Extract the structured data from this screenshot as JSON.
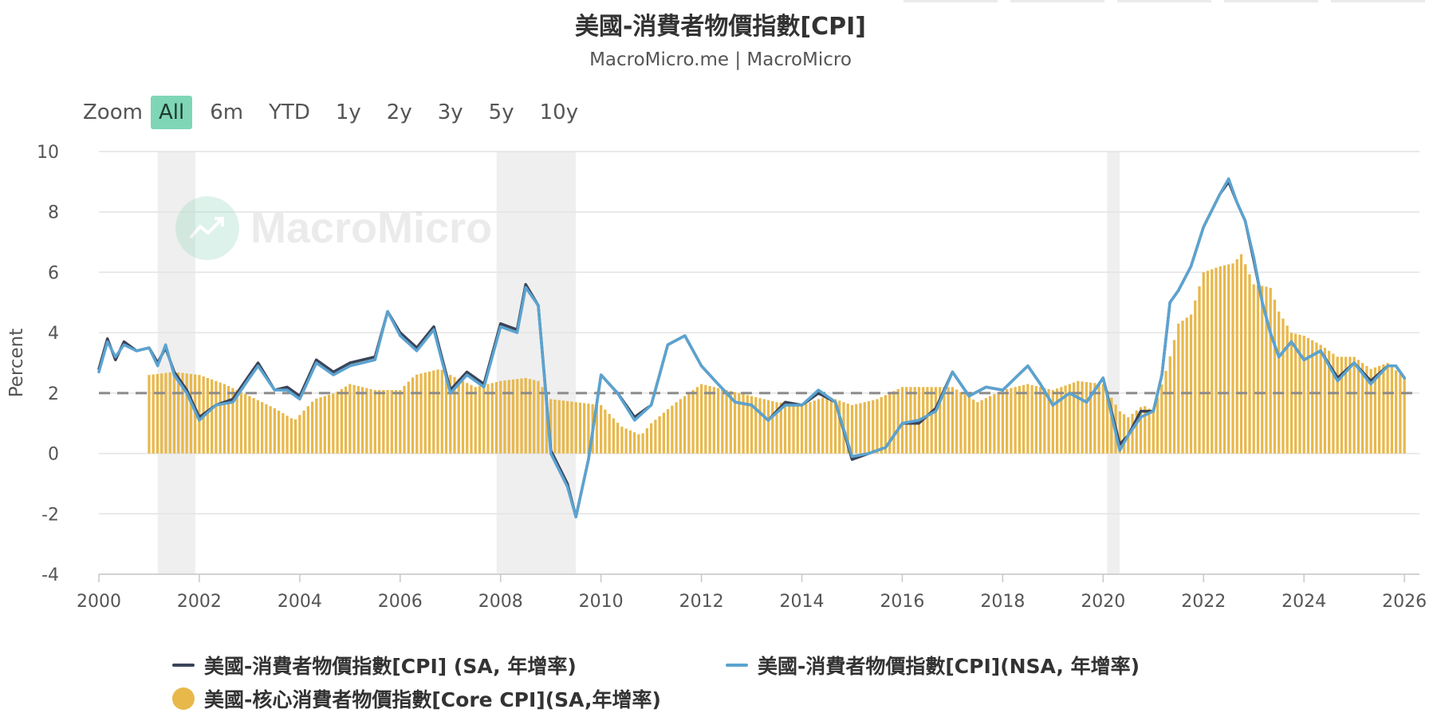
{
  "title": "美國-消費者物價指數[CPI]",
  "subtitle": "MacroMicro.me | MacroMicro",
  "watermark": "MacroMicro",
  "zoom": {
    "label": "Zoom",
    "options": [
      "All",
      "6m",
      "YTD",
      "1y",
      "2y",
      "3y",
      "5y",
      "10y"
    ],
    "active": "All"
  },
  "colors": {
    "cpi_sa": "#3b4458",
    "cpi_nsa": "#5ba3d0",
    "core": "#e8b84b",
    "shade": "#efefef",
    "ref": "#8a8a8a"
  },
  "chart_data": {
    "type": "line",
    "ylabel": "Percent",
    "xlim": [
      2000,
      2026.3
    ],
    "ylim": [
      -4,
      10
    ],
    "yticks": [
      -4,
      -2,
      0,
      2,
      4,
      6,
      8,
      10
    ],
    "xticks": [
      2000,
      2002,
      2004,
      2006,
      2008,
      2010,
      2012,
      2014,
      2016,
      2018,
      2020,
      2022,
      2024,
      2026
    ],
    "reference_line": 2,
    "grid": true,
    "legend_position": "bottom",
    "recessions": [
      [
        2001.17,
        2001.92
      ],
      [
        2007.92,
        2009.5
      ],
      [
        2020.08,
        2020.33
      ]
    ],
    "series": [
      {
        "name": "美國-消費者物價指數[CPI] (SA, 年增率)",
        "kind": "line",
        "x": [
          2000.0,
          2000.17,
          2000.33,
          2000.5,
          2000.75,
          2001.0,
          2001.17,
          2001.33,
          2001.5,
          2001.75,
          2002.0,
          2002.33,
          2002.67,
          2003.0,
          2003.17,
          2003.5,
          2003.75,
          2004.0,
          2004.33,
          2004.67,
          2005.0,
          2005.5,
          2005.75,
          2006.0,
          2006.33,
          2006.67,
          2007.0,
          2007.33,
          2007.67,
          2008.0,
          2008.33,
          2008.5,
          2008.75,
          2009.0,
          2009.33,
          2009.5,
          2009.75,
          2010.0,
          2010.33,
          2010.67,
          2011.0,
          2011.33,
          2011.67,
          2012.0,
          2012.33,
          2012.67,
          2013.0,
          2013.33,
          2013.67,
          2014.0,
          2014.33,
          2014.67,
          2015.0,
          2015.33,
          2015.67,
          2016.0,
          2016.33,
          2016.67,
          2017.0,
          2017.33,
          2017.67,
          2018.0,
          2018.5,
          2018.75,
          2019.0,
          2019.33,
          2019.67,
          2020.0,
          2020.33,
          2020.5,
          2020.75,
          2021.0,
          2021.17,
          2021.33,
          2021.5,
          2021.75,
          2022.0,
          2022.33,
          2022.5,
          2022.67,
          2022.83,
          2023.0,
          2023.17,
          2023.33,
          2023.5,
          2023.75,
          2024.0,
          2024.33,
          2024.67,
          2025.0,
          2025.33,
          2025.67,
          2025.83,
          2026.0
        ],
        "values": [
          2.8,
          3.8,
          3.1,
          3.7,
          3.4,
          3.5,
          3.0,
          3.5,
          2.7,
          2.1,
          1.2,
          1.6,
          1.8,
          2.6,
          3.0,
          2.1,
          2.2,
          1.9,
          3.1,
          2.7,
          3.0,
          3.2,
          4.7,
          4.0,
          3.5,
          4.2,
          2.1,
          2.7,
          2.3,
          4.3,
          4.1,
          5.6,
          4.9,
          0.1,
          -1.0,
          -2.1,
          -0.2,
          2.6,
          2.0,
          1.2,
          1.6,
          3.6,
          3.9,
          2.9,
          2.3,
          1.7,
          1.6,
          1.1,
          1.7,
          1.6,
          2.0,
          1.7,
          -0.2,
          0.0,
          0.2,
          1.0,
          1.0,
          1.5,
          2.7,
          1.9,
          2.2,
          2.1,
          2.9,
          2.3,
          1.6,
          2.0,
          1.7,
          2.5,
          0.3,
          0.6,
          1.4,
          1.4,
          2.6,
          5.0,
          5.4,
          6.2,
          7.5,
          8.6,
          9.0,
          8.3,
          7.7,
          6.4,
          5.0,
          4.0,
          3.2,
          3.7,
          3.1,
          3.4,
          2.5,
          3.0,
          2.4,
          2.9,
          2.9,
          2.5
        ]
      },
      {
        "name": "美國-消費者物價指數[CPI](NSA, 年增率)",
        "kind": "line",
        "x": [
          2000.0,
          2000.17,
          2000.33,
          2000.5,
          2000.75,
          2001.0,
          2001.17,
          2001.33,
          2001.5,
          2001.75,
          2002.0,
          2002.33,
          2002.67,
          2003.0,
          2003.17,
          2003.5,
          2003.75,
          2004.0,
          2004.33,
          2004.67,
          2005.0,
          2005.5,
          2005.75,
          2006.0,
          2006.33,
          2006.67,
          2007.0,
          2007.33,
          2007.67,
          2008.0,
          2008.33,
          2008.5,
          2008.75,
          2009.0,
          2009.33,
          2009.5,
          2009.75,
          2010.0,
          2010.33,
          2010.67,
          2011.0,
          2011.33,
          2011.67,
          2012.0,
          2012.33,
          2012.67,
          2013.0,
          2013.33,
          2013.67,
          2014.0,
          2014.33,
          2014.67,
          2015.0,
          2015.33,
          2015.67,
          2016.0,
          2016.33,
          2016.67,
          2017.0,
          2017.33,
          2017.67,
          2018.0,
          2018.5,
          2018.75,
          2019.0,
          2019.33,
          2019.67,
          2020.0,
          2020.33,
          2020.5,
          2020.75,
          2021.0,
          2021.17,
          2021.33,
          2021.5,
          2021.75,
          2022.0,
          2022.33,
          2022.5,
          2022.67,
          2022.83,
          2023.0,
          2023.17,
          2023.33,
          2023.5,
          2023.75,
          2024.0,
          2024.33,
          2024.67,
          2025.0,
          2025.33,
          2025.67,
          2025.83,
          2026.0
        ],
        "values": [
          2.7,
          3.7,
          3.2,
          3.6,
          3.4,
          3.5,
          2.9,
          3.6,
          2.6,
          2.0,
          1.1,
          1.6,
          1.7,
          2.5,
          2.9,
          2.1,
          2.1,
          1.8,
          3.0,
          2.6,
          2.9,
          3.1,
          4.7,
          3.9,
          3.4,
          4.1,
          2.0,
          2.6,
          2.2,
          4.2,
          4.0,
          5.5,
          4.9,
          0.0,
          -1.1,
          -2.1,
          -0.2,
          2.6,
          2.0,
          1.1,
          1.6,
          3.6,
          3.9,
          2.9,
          2.3,
          1.7,
          1.6,
          1.1,
          1.6,
          1.6,
          2.1,
          1.7,
          -0.1,
          0.0,
          0.2,
          1.0,
          1.1,
          1.4,
          2.7,
          1.9,
          2.2,
          2.1,
          2.9,
          2.3,
          1.6,
          2.0,
          1.7,
          2.5,
          0.1,
          0.6,
          1.2,
          1.4,
          2.6,
          5.0,
          5.4,
          6.2,
          7.5,
          8.6,
          9.1,
          8.3,
          7.7,
          6.5,
          5.0,
          4.0,
          3.2,
          3.7,
          3.1,
          3.4,
          2.4,
          3.0,
          2.3,
          2.9,
          2.9,
          2.5
        ]
      },
      {
        "name": "美國-核心消費者物價指數[Core CPI](SA,年增率)",
        "kind": "bar",
        "x": [
          2001.0,
          2001.5,
          2002.0,
          2002.5,
          2003.0,
          2003.5,
          2003.9,
          2004.3,
          2004.7,
          2005.0,
          2005.5,
          2006.0,
          2006.3,
          2006.8,
          2007.0,
          2007.5,
          2008.0,
          2008.5,
          2008.75,
          2009.0,
          2009.5,
          2010.0,
          2010.4,
          2010.8,
          2011.0,
          2011.5,
          2011.75,
          2012.0,
          2012.5,
          2013.0,
          2013.5,
          2014.0,
          2014.5,
          2015.0,
          2015.5,
          2016.0,
          2016.5,
          2017.0,
          2017.5,
          2018.0,
          2018.5,
          2019.0,
          2019.5,
          2020.0,
          2020.33,
          2020.5,
          2020.8,
          2021.0,
          2021.3,
          2021.5,
          2021.75,
          2022.0,
          2022.33,
          2022.6,
          2022.75,
          2023.0,
          2023.33,
          2023.5,
          2023.75,
          2024.0,
          2024.33,
          2024.67,
          2025.0,
          2025.33,
          2025.67,
          2026.0
        ],
        "values": [
          2.6,
          2.7,
          2.6,
          2.3,
          1.9,
          1.5,
          1.1,
          1.8,
          2.0,
          2.3,
          2.1,
          2.1,
          2.6,
          2.8,
          2.6,
          2.2,
          2.4,
          2.5,
          2.4,
          1.8,
          1.7,
          1.6,
          0.9,
          0.6,
          1.0,
          1.7,
          2.0,
          2.3,
          2.1,
          1.9,
          1.7,
          1.6,
          1.9,
          1.6,
          1.8,
          2.2,
          2.2,
          2.2,
          1.7,
          2.1,
          2.3,
          2.1,
          2.4,
          2.3,
          1.4,
          1.2,
          1.6,
          1.4,
          3.0,
          4.3,
          4.6,
          6.0,
          6.2,
          6.3,
          6.6,
          5.6,
          5.5,
          4.7,
          4.0,
          3.9,
          3.6,
          3.2,
          3.2,
          2.8,
          3.0,
          2.5
        ]
      }
    ]
  }
}
